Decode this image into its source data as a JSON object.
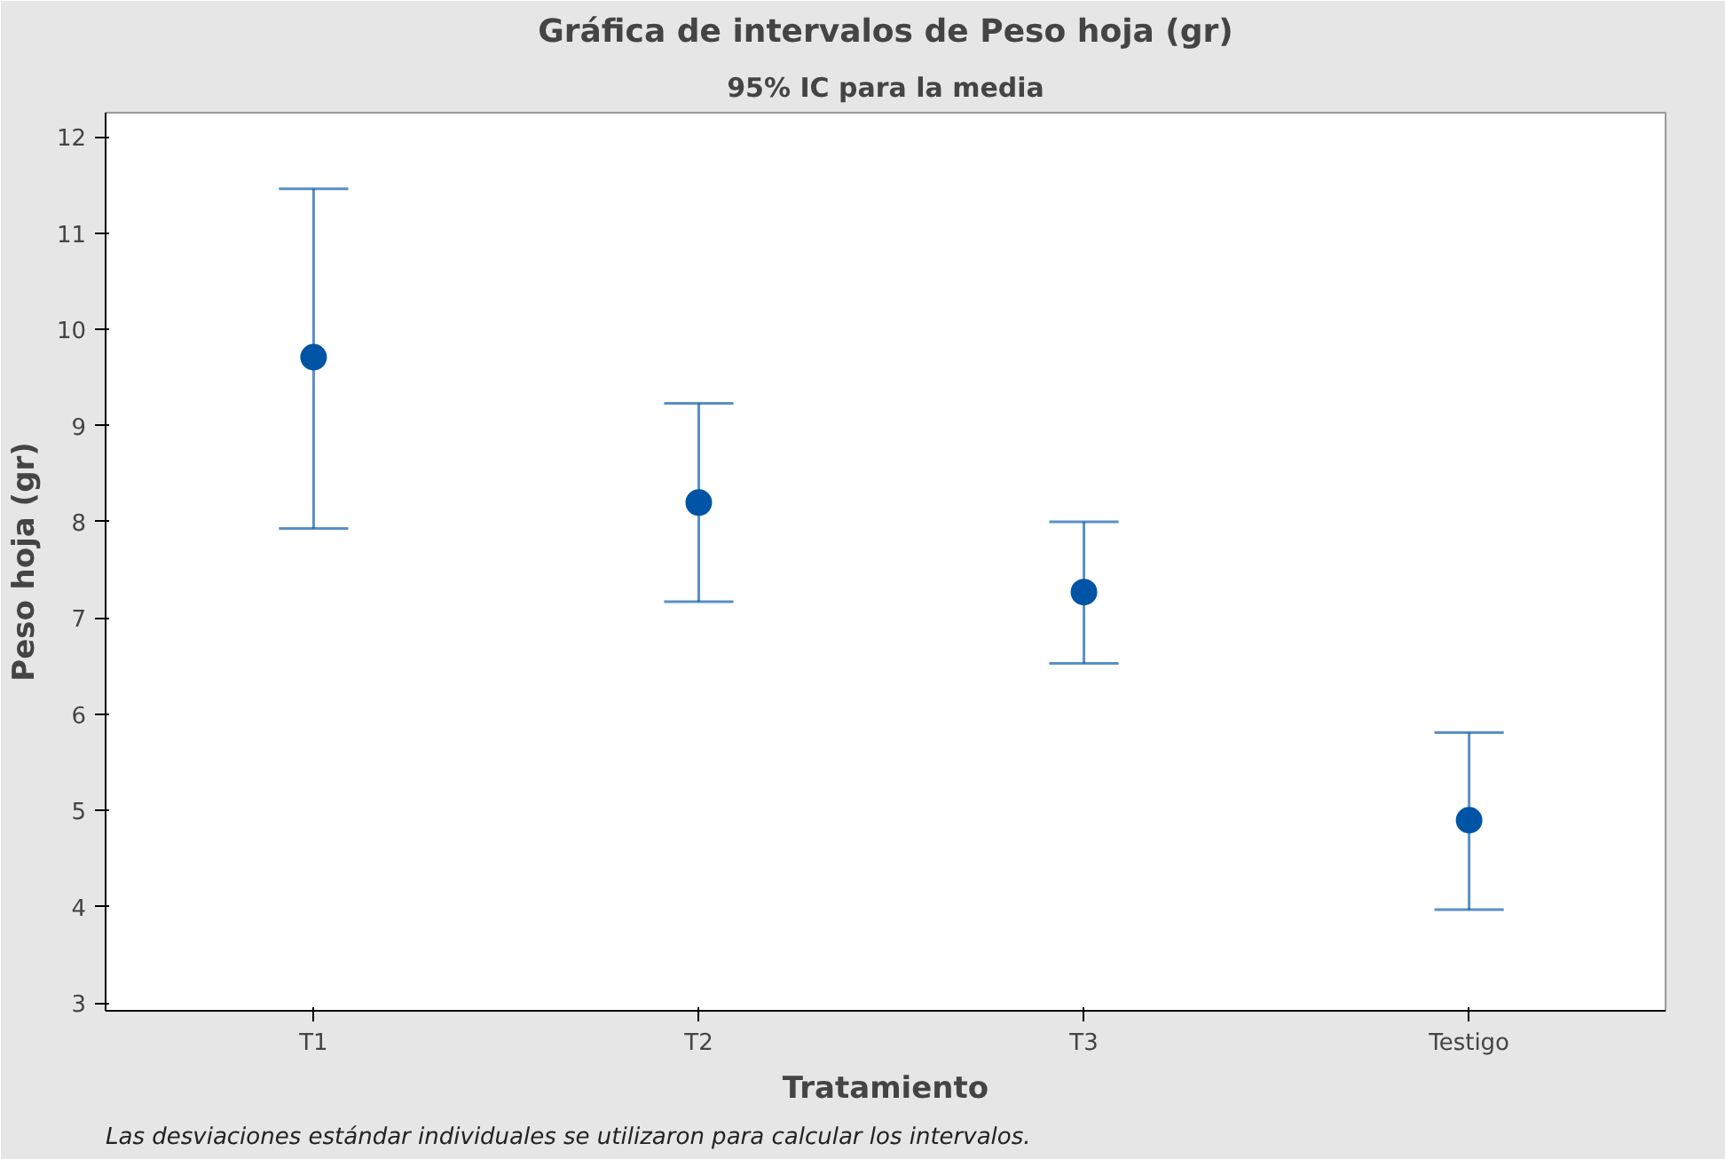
{
  "chart_data": {
    "type": "scatter",
    "title": "Gráfica de intervalos de Peso hoja (gr)",
    "subtitle": "95% IC para la media",
    "xlabel": "Tratamiento",
    "ylabel": "Peso hoja (gr)",
    "categories": [
      "T1",
      "T2",
      "T3",
      "Testigo"
    ],
    "series": [
      {
        "color": "#0054a6",
        "values": [
          9.71,
          8.2,
          7.27,
          4.9
        ],
        "errors": [
          [
            7.93,
            11.46
          ],
          [
            7.17,
            9.23
          ],
          [
            6.53,
            8.0
          ],
          [
            3.97,
            5.81
          ]
        ]
      }
    ],
    "ylim": [
      2.92,
      12.25
    ],
    "yticks": [
      3,
      4,
      5,
      6,
      7,
      8,
      9,
      10,
      11,
      12
    ],
    "grid": false,
    "marker": "circle",
    "annotations": [
      "Las desviaciones estándar individuales se utilizaron para calcular los intervalos."
    ]
  }
}
